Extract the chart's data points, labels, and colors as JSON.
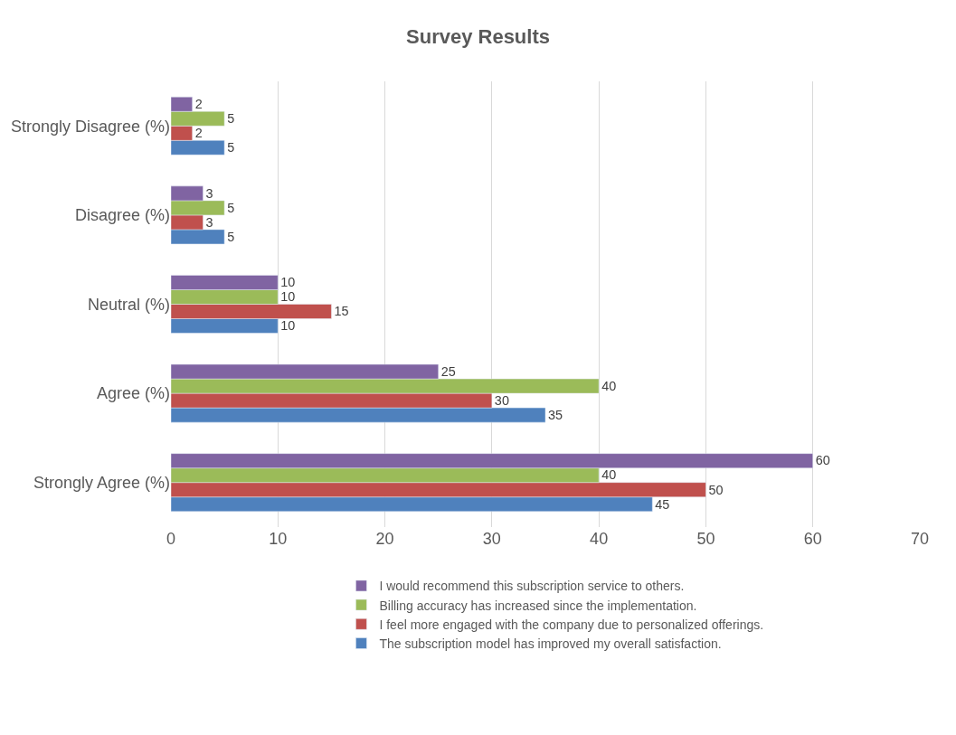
{
  "chart_data": {
    "type": "bar",
    "title": "Survey Results",
    "orientation": "horizontal",
    "categories": [
      "Strongly Disagree (%)",
      "Disagree (%)",
      "Neutral (%)",
      "Agree (%)",
      "Strongly Agree (%)"
    ],
    "series": [
      {
        "name": "The subscription model has improved my overall satisfaction.",
        "color": "#4f81bd",
        "values": [
          5,
          5,
          10,
          35,
          45
        ]
      },
      {
        "name": "I feel more engaged with the company due to personalized offerings.",
        "color": "#c0504d",
        "values": [
          2,
          3,
          15,
          30,
          50
        ]
      },
      {
        "name": "Billing accuracy has increased since the implementation.",
        "color": "#9bbb59",
        "values": [
          5,
          5,
          10,
          40,
          40
        ]
      },
      {
        "name": "I would recommend this subscription service to others.",
        "color": "#8064a2",
        "values": [
          2,
          3,
          10,
          25,
          60
        ]
      }
    ],
    "xlim": [
      0,
      70
    ],
    "xticks": [
      0,
      10,
      20,
      30,
      40,
      50,
      60,
      70
    ],
    "grid": "x",
    "data_labels": true,
    "legend": "bottom"
  }
}
